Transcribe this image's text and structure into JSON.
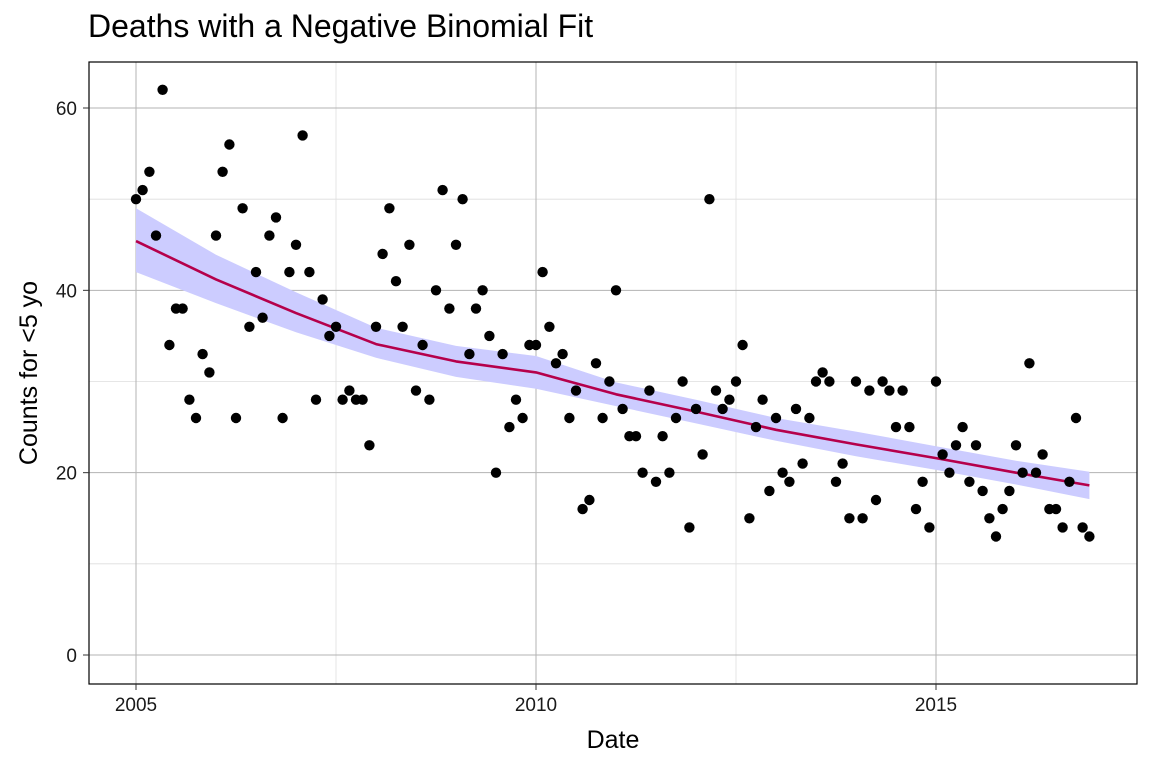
{
  "chart_data": {
    "type": "scatter",
    "title": "Deaths with a Negative Binomial Fit",
    "xlabel": "Date",
    "ylabel": "Counts for <5 yo",
    "xlim": [
      2004.42,
      2017.5
    ],
    "ylim": [
      -3,
      65
    ],
    "x_ticks": [
      {
        "value": 2005,
        "label": "2005"
      },
      {
        "value": 2010,
        "label": "2010"
      },
      {
        "value": 2015,
        "label": "2015"
      }
    ],
    "y_ticks": [
      {
        "value": 0,
        "label": "0"
      },
      {
        "value": 20,
        "label": "20"
      },
      {
        "value": 40,
        "label": "40"
      },
      {
        "value": 60,
        "label": "60"
      }
    ],
    "grid": true,
    "colors": {
      "points": "#000000",
      "fit_line": "#b5004b",
      "ribbon": "#ccccff"
    },
    "points": [
      [
        2005.0,
        50
      ],
      [
        2005.083,
        51
      ],
      [
        2005.167,
        53
      ],
      [
        2005.25,
        46
      ],
      [
        2005.333,
        62
      ],
      [
        2005.417,
        34
      ],
      [
        2005.5,
        38
      ],
      [
        2005.583,
        38
      ],
      [
        2005.667,
        28
      ],
      [
        2005.75,
        26
      ],
      [
        2005.833,
        33
      ],
      [
        2005.917,
        31
      ],
      [
        2006.0,
        46
      ],
      [
        2006.083,
        53
      ],
      [
        2006.167,
        56
      ],
      [
        2006.25,
        26
      ],
      [
        2006.333,
        49
      ],
      [
        2006.417,
        36
      ],
      [
        2006.5,
        42
      ],
      [
        2006.583,
        37
      ],
      [
        2006.667,
        46
      ],
      [
        2006.75,
        48
      ],
      [
        2006.833,
        26
      ],
      [
        2006.917,
        42
      ],
      [
        2007.0,
        45
      ],
      [
        2007.083,
        57
      ],
      [
        2007.167,
        42
      ],
      [
        2007.25,
        28
      ],
      [
        2007.333,
        39
      ],
      [
        2007.417,
        35
      ],
      [
        2007.5,
        36
      ],
      [
        2007.583,
        28
      ],
      [
        2007.667,
        29
      ],
      [
        2007.75,
        28
      ],
      [
        2007.833,
        28
      ],
      [
        2007.917,
        23
      ],
      [
        2008.0,
        36
      ],
      [
        2008.083,
        44
      ],
      [
        2008.167,
        49
      ],
      [
        2008.25,
        41
      ],
      [
        2008.333,
        36
      ],
      [
        2008.417,
        45
      ],
      [
        2008.5,
        29
      ],
      [
        2008.583,
        34
      ],
      [
        2008.667,
        28
      ],
      [
        2008.75,
        40
      ],
      [
        2008.833,
        51
      ],
      [
        2008.917,
        38
      ],
      [
        2009.0,
        45
      ],
      [
        2009.083,
        50
      ],
      [
        2009.167,
        33
      ],
      [
        2009.25,
        38
      ],
      [
        2009.333,
        40
      ],
      [
        2009.417,
        35
      ],
      [
        2009.5,
        20
      ],
      [
        2009.583,
        33
      ],
      [
        2009.667,
        25
      ],
      [
        2009.75,
        28
      ],
      [
        2009.833,
        26
      ],
      [
        2009.917,
        34
      ],
      [
        2010.0,
        34
      ],
      [
        2010.083,
        42
      ],
      [
        2010.167,
        36
      ],
      [
        2010.25,
        32
      ],
      [
        2010.333,
        33
      ],
      [
        2010.417,
        26
      ],
      [
        2010.5,
        29
      ],
      [
        2010.583,
        16
      ],
      [
        2010.667,
        17
      ],
      [
        2010.75,
        32
      ],
      [
        2010.833,
        26
      ],
      [
        2010.917,
        30
      ],
      [
        2011.0,
        40
      ],
      [
        2011.083,
        27
      ],
      [
        2011.167,
        24
      ],
      [
        2011.25,
        24
      ],
      [
        2011.333,
        20
      ],
      [
        2011.417,
        29
      ],
      [
        2011.5,
        19
      ],
      [
        2011.583,
        24
      ],
      [
        2011.667,
        20
      ],
      [
        2011.75,
        26
      ],
      [
        2011.833,
        30
      ],
      [
        2011.917,
        14
      ],
      [
        2012.0,
        27
      ],
      [
        2012.083,
        22
      ],
      [
        2012.167,
        50
      ],
      [
        2012.25,
        29
      ],
      [
        2012.333,
        27
      ],
      [
        2012.417,
        28
      ],
      [
        2012.5,
        30
      ],
      [
        2012.583,
        34
      ],
      [
        2012.667,
        15
      ],
      [
        2012.75,
        25
      ],
      [
        2012.833,
        28
      ],
      [
        2012.917,
        18
      ],
      [
        2013.0,
        26
      ],
      [
        2013.083,
        20
      ],
      [
        2013.167,
        19
      ],
      [
        2013.25,
        27
      ],
      [
        2013.333,
        21
      ],
      [
        2013.417,
        26
      ],
      [
        2013.5,
        30
      ],
      [
        2013.583,
        31
      ],
      [
        2013.667,
        30
      ],
      [
        2013.75,
        19
      ],
      [
        2013.833,
        21
      ],
      [
        2013.917,
        15
      ],
      [
        2014.0,
        30
      ],
      [
        2014.083,
        15
      ],
      [
        2014.167,
        29
      ],
      [
        2014.25,
        17
      ],
      [
        2014.333,
        30
      ],
      [
        2014.417,
        29
      ],
      [
        2014.5,
        25
      ],
      [
        2014.583,
        29
      ],
      [
        2014.667,
        25
      ],
      [
        2014.75,
        16
      ],
      [
        2014.833,
        19
      ],
      [
        2014.917,
        14
      ],
      [
        2015.0,
        30
      ],
      [
        2015.083,
        22
      ],
      [
        2015.167,
        20
      ],
      [
        2015.25,
        23
      ],
      [
        2015.333,
        25
      ],
      [
        2015.417,
        19
      ],
      [
        2015.5,
        23
      ],
      [
        2015.583,
        18
      ],
      [
        2015.667,
        15
      ],
      [
        2015.75,
        13
      ],
      [
        2015.833,
        16
      ],
      [
        2015.917,
        18
      ],
      [
        2016.0,
        23
      ],
      [
        2016.083,
        20
      ],
      [
        2016.167,
        32
      ],
      [
        2016.25,
        20
      ],
      [
        2016.333,
        22
      ],
      [
        2016.417,
        16
      ],
      [
        2016.5,
        16
      ],
      [
        2016.583,
        14
      ],
      [
        2016.667,
        19
      ],
      [
        2016.75,
        26
      ],
      [
        2016.833,
        14
      ],
      [
        2016.917,
        13
      ]
    ],
    "fit": {
      "x": [
        2005.0,
        2006.0,
        2007.0,
        2008.0,
        2009.0,
        2010.0,
        2011.0,
        2012.0,
        2013.0,
        2014.0,
        2015.0,
        2016.0,
        2016.917
      ],
      "y": [
        45.4,
        41.2,
        37.5,
        34.1,
        32.2,
        31.0,
        28.6,
        26.7,
        24.7,
        23.1,
        21.6,
        20.0,
        18.6
      ],
      "lower": [
        42.0,
        38.6,
        35.4,
        32.6,
        30.5,
        29.2,
        27.3,
        25.4,
        23.5,
        21.8,
        20.3,
        18.7,
        17.1
      ],
      "upper": [
        49.0,
        43.9,
        39.8,
        35.9,
        33.9,
        32.8,
        29.9,
        28.0,
        26.0,
        24.5,
        22.9,
        21.3,
        20.1
      ]
    }
  }
}
